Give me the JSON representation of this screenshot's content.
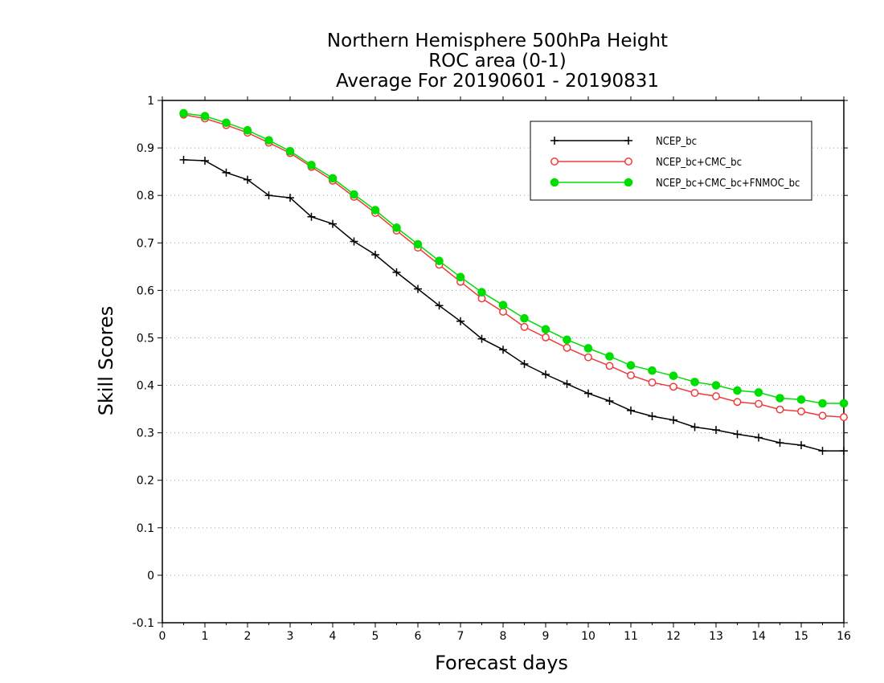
{
  "chart_data": {
    "type": "line",
    "title": [
      "Northern Hemisphere 500hPa Height",
      "ROC area (0-1)",
      "Average For 20190601 - 20190831"
    ],
    "xlabel": "Forecast days",
    "ylabel": "Skill Scores",
    "xlim": [
      0,
      16
    ],
    "ylim": [
      -0.1,
      1
    ],
    "x_ticks": [
      0,
      1,
      2,
      3,
      4,
      5,
      6,
      7,
      8,
      9,
      10,
      11,
      12,
      13,
      14,
      15,
      16
    ],
    "y_ticks": [
      -0.1,
      0,
      0.1,
      0.2,
      0.3,
      0.4,
      0.5,
      0.6,
      0.7,
      0.8,
      0.9,
      1
    ],
    "y_tick_labels": [
      "-0.1",
      "0",
      "0.1",
      "0.2",
      "0.3",
      "0.4",
      "0.5",
      "0.6",
      "0.7",
      "0.8",
      "0.9",
      "1"
    ],
    "grid": "horizontal dotted",
    "legend_position": "top-right",
    "x": [
      0.5,
      1,
      1.5,
      2,
      2.5,
      3,
      3.5,
      4,
      4.5,
      5,
      5.5,
      6,
      6.5,
      7,
      7.5,
      8,
      8.5,
      9,
      9.5,
      10,
      10.5,
      11,
      11.5,
      12,
      12.5,
      13,
      13.5,
      14,
      14.5,
      15,
      15.5,
      16
    ],
    "series": [
      {
        "name": "NCEP_bc",
        "color": "#000000",
        "marker": "plus",
        "values": [
          0.875,
          0.873,
          0.848,
          0.833,
          0.8,
          0.795,
          0.755,
          0.74,
          0.703,
          0.675,
          0.638,
          0.603,
          0.568,
          0.535,
          0.498,
          0.475,
          0.445,
          0.423,
          0.403,
          0.383,
          0.367,
          0.347,
          0.335,
          0.327,
          0.312,
          0.306,
          0.297,
          0.29,
          0.279,
          0.274,
          0.262,
          0.262
        ]
      },
      {
        "name": "NCEP_bc+CMC_bc",
        "color": "#ee3b3b",
        "marker": "open-circle",
        "values": [
          0.97,
          0.962,
          0.948,
          0.932,
          0.911,
          0.889,
          0.86,
          0.831,
          0.797,
          0.763,
          0.726,
          0.69,
          0.654,
          0.618,
          0.583,
          0.555,
          0.523,
          0.501,
          0.479,
          0.459,
          0.441,
          0.421,
          0.406,
          0.397,
          0.384,
          0.377,
          0.365,
          0.361,
          0.349,
          0.345,
          0.336,
          0.333
        ]
      },
      {
        "name": "NCEP_bc+CMC_bc+FNMOC_bc",
        "color": "#00dd00",
        "marker": "filled-circle",
        "values": [
          0.973,
          0.967,
          0.953,
          0.937,
          0.916,
          0.893,
          0.864,
          0.836,
          0.802,
          0.769,
          0.732,
          0.697,
          0.662,
          0.628,
          0.596,
          0.569,
          0.541,
          0.518,
          0.496,
          0.478,
          0.461,
          0.442,
          0.431,
          0.42,
          0.407,
          0.4,
          0.389,
          0.385,
          0.373,
          0.37,
          0.362,
          0.362
        ]
      }
    ]
  }
}
